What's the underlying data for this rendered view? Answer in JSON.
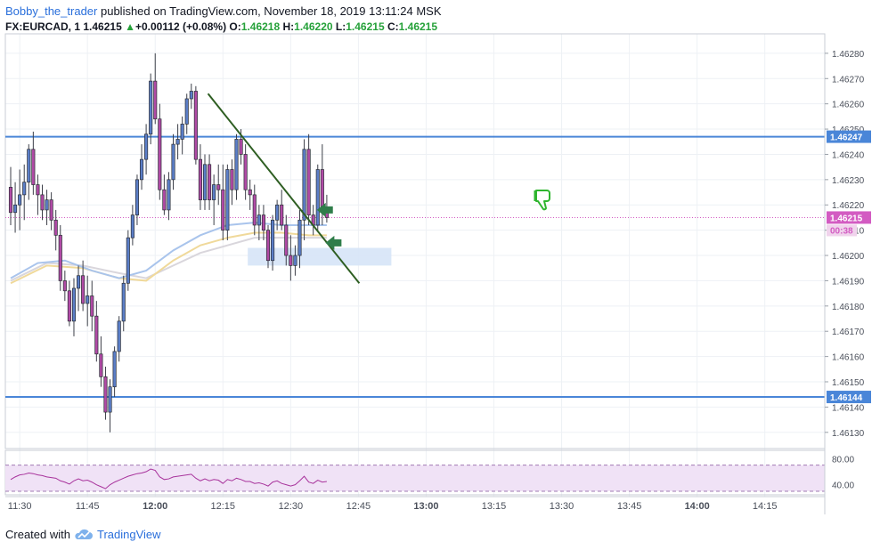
{
  "header": {
    "author": "Bobby_the_trader",
    "published": "published on TradingView.com, November 18, 2019 13:11:24 MSK",
    "symbol": "FX:EURCAD, 1",
    "last": "1.46215",
    "change_arrow": "▲",
    "change": "+0.00112 (+0.08%)",
    "o_label": "O:",
    "o_value": "1.46218",
    "h_label": "H:",
    "h_value": "1.46220",
    "l_label": "L:",
    "l_value": "1.46215",
    "c_label": "C:",
    "c_value": "1.46215"
  },
  "footer": {
    "prefix": "Created with",
    "brand": "TradingView",
    "logo_icon": "tradingview-cloud-icon"
  },
  "colors": {
    "bull": "#5b7ec7",
    "bear": "#b04aa5",
    "level": "#4a86d8",
    "trend": "#2e5e22",
    "ma_blue": "#a9c4ec",
    "ma_yellow": "#f0d99a",
    "ma_gray": "#d9d6dc",
    "zone": "#d6e4f7",
    "rsi_line": "#a8339c",
    "rsi_band": "#f0e2f6",
    "arrow": "#2f7d4a",
    "thumb": "#2fb52f",
    "price_label": "#d35bc2"
  },
  "chart_data": {
    "type": "candlestick",
    "title": "",
    "xlabel": "",
    "ylabel": "",
    "ylim": [
      1.46125,
      1.46287
    ],
    "x_ticks": [
      "11:30",
      "11:45",
      "12:00",
      "12:15",
      "12:30",
      "12:45",
      "13:00",
      "13:15",
      "13:30",
      "13:45",
      "14:00",
      "14:15"
    ],
    "y_ticks": [
      "1.46280",
      "1.46270",
      "1.46260",
      "1.46250",
      "1.46240",
      "1.46230",
      "1.46220",
      "1.46210",
      "1.46200",
      "1.46190",
      "1.46180",
      "1.46170",
      "1.46160",
      "1.46150",
      "1.46140",
      "1.46130"
    ],
    "candles": [
      [
        1.46227,
        1.46235,
        1.46212,
        1.46217
      ],
      [
        1.46217,
        1.46229,
        1.46209,
        1.4622
      ],
      [
        1.4622,
        1.46234,
        1.4621,
        1.46224
      ],
      [
        1.46224,
        1.46236,
        1.46214,
        1.46229
      ],
      [
        1.46229,
        1.46244,
        1.46222,
        1.46242
      ],
      [
        1.46242,
        1.46249,
        1.46224,
        1.46228
      ],
      [
        1.46228,
        1.46232,
        1.46216,
        1.46224
      ],
      [
        1.46224,
        1.46228,
        1.46214,
        1.46218
      ],
      [
        1.46218,
        1.46226,
        1.46212,
        1.46222
      ],
      [
        1.46222,
        1.46225,
        1.4621,
        1.46214
      ],
      [
        1.46214,
        1.46218,
        1.46202,
        1.46208
      ],
      [
        1.46208,
        1.46212,
        1.46186,
        1.4619
      ],
      [
        1.4619,
        1.46194,
        1.46182,
        1.46186
      ],
      [
        1.46186,
        1.4619,
        1.46172,
        1.46174
      ],
      [
        1.46174,
        1.46191,
        1.46168,
        1.46187
      ],
      [
        1.46187,
        1.46196,
        1.46178,
        1.46192
      ],
      [
        1.46192,
        1.46198,
        1.46178,
        1.46181
      ],
      [
        1.46181,
        1.46192,
        1.46172,
        1.46184
      ],
      [
        1.46184,
        1.4619,
        1.4617,
        1.46176
      ],
      [
        1.46176,
        1.46182,
        1.46158,
        1.46161
      ],
      [
        1.46161,
        1.46168,
        1.46148,
        1.46152
      ],
      [
        1.46152,
        1.46156,
        1.46135,
        1.46138
      ],
      [
        1.46138,
        1.46151,
        1.4613,
        1.46148
      ],
      [
        1.46148,
        1.46164,
        1.46144,
        1.46162
      ],
      [
        1.46162,
        1.46176,
        1.46158,
        1.46174
      ],
      [
        1.46174,
        1.46192,
        1.4617,
        1.46189
      ],
      [
        1.46189,
        1.4621,
        1.46186,
        1.46207
      ],
      [
        1.46207,
        1.4622,
        1.46204,
        1.46216
      ],
      [
        1.46216,
        1.46232,
        1.46212,
        1.4623
      ],
      [
        1.4623,
        1.46244,
        1.46226,
        1.46238
      ],
      [
        1.46238,
        1.46252,
        1.46232,
        1.46248
      ],
      [
        1.46248,
        1.46272,
        1.46244,
        1.46269
      ],
      [
        1.46269,
        1.4628,
        1.46252,
        1.46254
      ],
      [
        1.46254,
        1.4626,
        1.46222,
        1.46226
      ],
      [
        1.46226,
        1.46232,
        1.46216,
        1.46218
      ],
      [
        1.46218,
        1.46233,
        1.46214,
        1.4623
      ],
      [
        1.4623,
        1.46248,
        1.46226,
        1.46244
      ],
      [
        1.46244,
        1.46252,
        1.46238,
        1.46246
      ],
      [
        1.46246,
        1.46255,
        1.4624,
        1.46252
      ],
      [
        1.46252,
        1.46264,
        1.46248,
        1.46262
      ],
      [
        1.46262,
        1.46268,
        1.46258,
        1.46265
      ],
      [
        1.46265,
        1.46267,
        1.46236,
        1.46238
      ],
      [
        1.46238,
        1.46244,
        1.46218,
        1.46222
      ],
      [
        1.46222,
        1.4624,
        1.46218,
        1.46236
      ],
      [
        1.46236,
        1.4624,
        1.46218,
        1.46222
      ],
      [
        1.46222,
        1.46232,
        1.46212,
        1.46228
      ],
      [
        1.46228,
        1.46236,
        1.4622,
        1.46226
      ],
      [
        1.46226,
        1.46236,
        1.46206,
        1.4621
      ],
      [
        1.4621,
        1.46236,
        1.46206,
        1.46234
      ],
      [
        1.46234,
        1.46238,
        1.4622,
        1.46226
      ],
      [
        1.46226,
        1.46248,
        1.46222,
        1.46246
      ],
      [
        1.46246,
        1.4625,
        1.46236,
        1.4624
      ],
      [
        1.4624,
        1.46244,
        1.46222,
        1.46226
      ],
      [
        1.46226,
        1.4623,
        1.46218,
        1.46224
      ],
      [
        1.46224,
        1.46228,
        1.46208,
        1.46212
      ],
      [
        1.46212,
        1.4622,
        1.46206,
        1.46216
      ],
      [
        1.46216,
        1.4622,
        1.46206,
        1.4621
      ],
      [
        1.4621,
        1.46212,
        1.46195,
        1.46198
      ],
      [
        1.46198,
        1.46216,
        1.46194,
        1.46214
      ],
      [
        1.46214,
        1.46222,
        1.4621,
        1.4622
      ],
      [
        1.4622,
        1.46226,
        1.4621,
        1.46212
      ],
      [
        1.46212,
        1.46216,
        1.46196,
        1.462
      ],
      [
        1.462,
        1.46208,
        1.4619,
        1.46196
      ],
      [
        1.46196,
        1.46204,
        1.46192,
        1.462
      ],
      [
        1.462,
        1.46218,
        1.46195,
        1.46214
      ],
      [
        1.46214,
        1.46246,
        1.46206,
        1.46242
      ],
      [
        1.46242,
        1.46248,
        1.46212,
        1.46216
      ],
      [
        1.46216,
        1.4622,
        1.46208,
        1.46212
      ],
      [
        1.46212,
        1.46236,
        1.4621,
        1.46234
      ],
      [
        1.46234,
        1.46244,
        1.46212,
        1.46218
      ],
      [
        1.46218,
        1.46224,
        1.46213,
        1.46215
      ]
    ],
    "levels": [
      {
        "price": 1.46247,
        "label": "1.46247"
      },
      {
        "price": 1.46144,
        "label": "1.46144"
      }
    ],
    "current_price": {
      "price": 1.46215,
      "label": "1.46215",
      "countdown": "00:38"
    },
    "trendline": {
      "from": {
        "bar": 43.7,
        "price": 1.46264
      },
      "to": {
        "bar": 77.2,
        "price": 1.46189
      }
    },
    "zone": {
      "from_bar": 52.5,
      "to_bar": 84.3,
      "top": 1.46203,
      "bottom": 1.46196
    },
    "moving_averages": [
      {
        "color_key": "ma_gray",
        "points": [
          [
            0,
            1.4619
          ],
          [
            8,
            1.46197
          ],
          [
            16,
            1.46196
          ],
          [
            24,
            1.46193
          ],
          [
            30,
            1.46191
          ],
          [
            36,
            1.46196
          ],
          [
            42,
            1.46201
          ],
          [
            48,
            1.46204
          ],
          [
            54,
            1.46207
          ],
          [
            60,
            1.46207
          ],
          [
            66,
            1.46207
          ],
          [
            70,
            1.46207
          ]
        ]
      },
      {
        "color_key": "ma_yellow",
        "points": [
          [
            0,
            1.46189
          ],
          [
            8,
            1.46196
          ],
          [
            16,
            1.46195
          ],
          [
            24,
            1.46191
          ],
          [
            30,
            1.4619
          ],
          [
            36,
            1.46198
          ],
          [
            42,
            1.46204
          ],
          [
            48,
            1.46207
          ],
          [
            54,
            1.46209
          ],
          [
            60,
            1.46209
          ],
          [
            66,
            1.46208
          ],
          [
            70,
            1.46208
          ]
        ]
      },
      {
        "color_key": "ma_blue",
        "points": [
          [
            0,
            1.46191
          ],
          [
            6,
            1.46197
          ],
          [
            12,
            1.46198
          ],
          [
            18,
            1.46194
          ],
          [
            24,
            1.46191
          ],
          [
            30,
            1.46194
          ],
          [
            36,
            1.46202
          ],
          [
            42,
            1.46208
          ],
          [
            48,
            1.46212
          ],
          [
            54,
            1.46213
          ],
          [
            60,
            1.46212
          ],
          [
            66,
            1.46212
          ],
          [
            70,
            1.46212
          ]
        ]
      }
    ],
    "rsi": {
      "ylim": [
        30,
        90
      ],
      "y_ticks": [
        "80.00",
        "40.00"
      ],
      "levels": [
        70,
        30
      ],
      "values": [
        48,
        52,
        55,
        56,
        58,
        57,
        55,
        54,
        52,
        51,
        50,
        46,
        44,
        41,
        46,
        49,
        46,
        47,
        44,
        40,
        37,
        34,
        40,
        44,
        47,
        50,
        53,
        55,
        57,
        58,
        60,
        64,
        62,
        52,
        48,
        49,
        52,
        53,
        54,
        55,
        56,
        50,
        46,
        49,
        46,
        48,
        47,
        42,
        48,
        46,
        50,
        48,
        45,
        45,
        42,
        43,
        41,
        38,
        44,
        46,
        42,
        40,
        38,
        40,
        46,
        53,
        44,
        42,
        47,
        44,
        45
      ]
    },
    "annotations": {
      "thumb": "thumbs-down-icon",
      "arrows": 2
    }
  }
}
